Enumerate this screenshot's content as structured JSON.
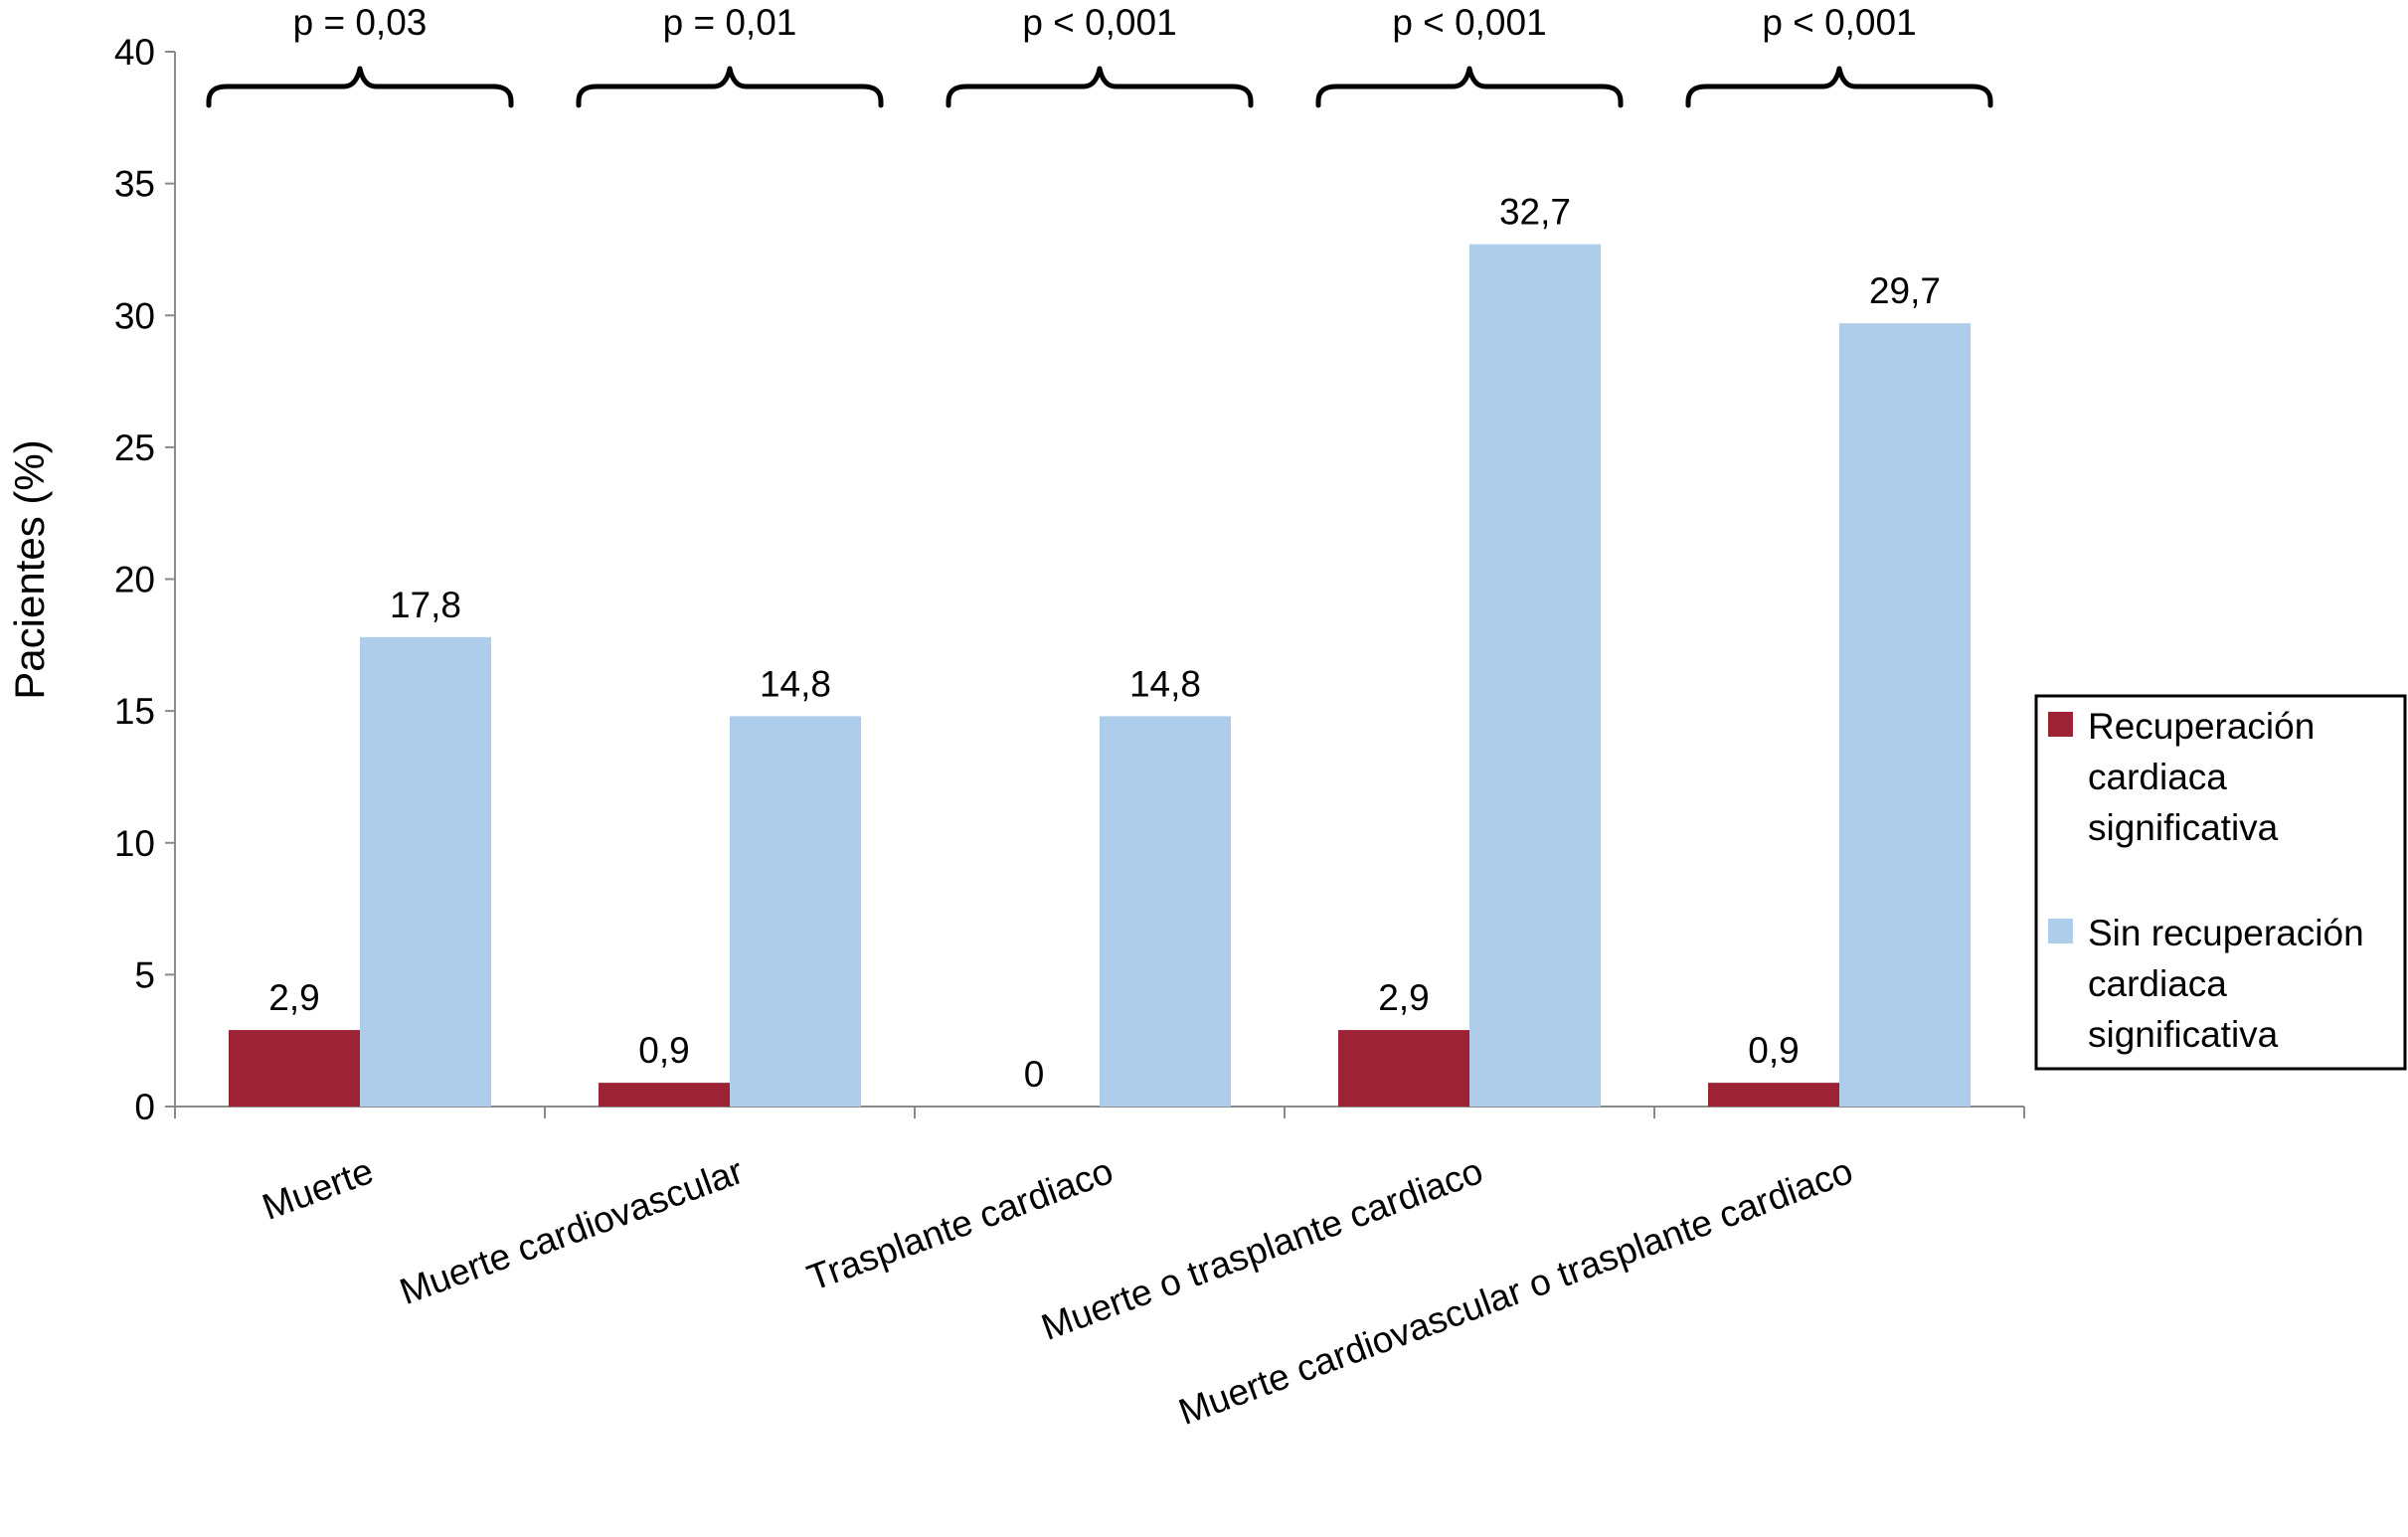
{
  "chart_data": {
    "type": "bar",
    "title": "",
    "xlabel": "",
    "ylabel": "Pacientes (%)",
    "ylim": [
      0,
      40
    ],
    "yticks": [
      0,
      5,
      10,
      15,
      20,
      25,
      30,
      35,
      40
    ],
    "ytick_labels": [
      "0",
      "5",
      "10",
      "15",
      "20",
      "25",
      "30",
      "35",
      "40"
    ],
    "grid": false,
    "legend_position": "right",
    "categories": [
      "Muerte",
      "Muerte cardiovascular",
      "Trasplante cardiaco",
      "Muerte o trasplante cardiaco",
      "Muerte cardiovascular o trasplante cardiaco"
    ],
    "series": [
      {
        "name": "Recuperación cardiaca significativa",
        "legend_lines": [
          "Recuperación",
          "cardiaca",
          "significativa"
        ],
        "color": "#9B2335",
        "values": [
          2.9,
          0.9,
          0,
          2.9,
          0.9
        ],
        "labels": [
          "2,9",
          "0,9",
          "0",
          "2,9",
          "0,9"
        ]
      },
      {
        "name": "Sin recuperación cardiaca significativa",
        "legend_lines": [
          "Sin recuperación",
          "cardiaca",
          "significativa"
        ],
        "color": "#AECDEB",
        "values": [
          17.8,
          14.8,
          14.8,
          32.7,
          29.7
        ],
        "labels": [
          "17,8",
          "14,8",
          "14,8",
          "32,7",
          "29,7"
        ]
      }
    ],
    "annotations": [
      "p = 0,03",
      "p = 0,01",
      "p < 0,001",
      "p < 0,001",
      "p < 0,001"
    ]
  }
}
